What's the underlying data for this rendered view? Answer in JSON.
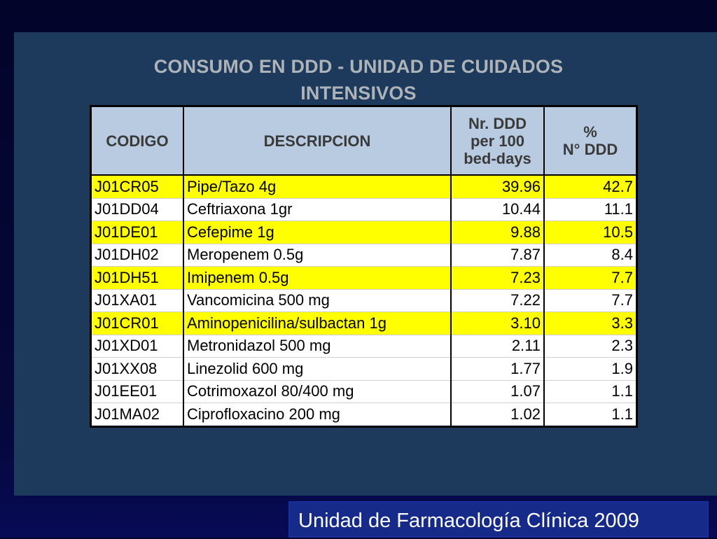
{
  "title_line1": "CONSUMO EN DDD - UNIDAD DE CUIDADOS",
  "title_line2": "INTENSIVOS",
  "table": {
    "headers": {
      "codigo": "CODIGO",
      "descripcion": "DESCRIPCION",
      "ddd_line1": "Nr. DDD",
      "ddd_line2": "per 100",
      "ddd_line3": "bed-days",
      "pct_line1": "%",
      "pct_line2": "N° DDD"
    },
    "rows": [
      {
        "code": "J01CR05",
        "desc": "Pipe/Tazo 4g",
        "ddd": "39.96",
        "pct": "42.7",
        "highlight": true
      },
      {
        "code": "J01DD04",
        "desc": "Ceftriaxona 1gr",
        "ddd": "10.44",
        "pct": "11.1",
        "highlight": false
      },
      {
        "code": "J01DE01",
        "desc": "Cefepime 1g",
        "ddd": "9.88",
        "pct": "10.5",
        "highlight": true
      },
      {
        "code": "J01DH02",
        "desc": "Meropenem 0.5g",
        "ddd": "7.87",
        "pct": "8.4",
        "highlight": false
      },
      {
        "code": "J01DH51",
        "desc": "Imipenem 0.5g",
        "ddd": "7.23",
        "pct": "7.7",
        "highlight": true
      },
      {
        "code": "J01XA01",
        "desc": "Vancomicina 500 mg",
        "ddd": "7.22",
        "pct": "7.7",
        "highlight": false
      },
      {
        "code": "J01CR01",
        "desc": "Aminopenicilina/sulbactan 1g",
        "ddd": "3.10",
        "pct": "3.3",
        "highlight": true
      },
      {
        "code": "J01XD01",
        "desc": "Metronidazol 500 mg",
        "ddd": "2.11",
        "pct": "2.3",
        "highlight": false
      },
      {
        "code": "J01XX08",
        "desc": "Linezolid 600 mg",
        "ddd": "1.77",
        "pct": "1.9",
        "highlight": false
      },
      {
        "code": "J01EE01",
        "desc": "Cotrimoxazol 80/400 mg",
        "ddd": "1.07",
        "pct": "1.1",
        "highlight": false
      },
      {
        "code": "J01MA02",
        "desc": "Ciprofloxacino 200 mg",
        "ddd": "1.02",
        "pct": "1.1",
        "highlight": false
      }
    ]
  },
  "footer": "Unidad de Farmacología Clínica 2009",
  "colors": {
    "highlight": "#ffff00",
    "panel": "#1d3a5c",
    "header_cell": "#b8cbe0",
    "footer_bg": "#162a8a"
  }
}
